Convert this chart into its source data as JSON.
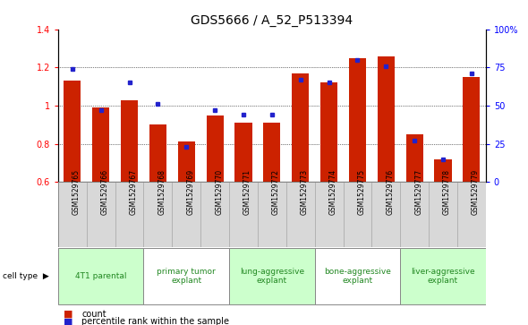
{
  "title": "GDS5666 / A_52_P513394",
  "samples": [
    "GSM1529765",
    "GSM1529766",
    "GSM1529767",
    "GSM1529768",
    "GSM1529769",
    "GSM1529770",
    "GSM1529771",
    "GSM1529772",
    "GSM1529773",
    "GSM1529774",
    "GSM1529775",
    "GSM1529776",
    "GSM1529777",
    "GSM1529778",
    "GSM1529779"
  ],
  "count_values": [
    1.13,
    0.99,
    1.03,
    0.9,
    0.81,
    0.95,
    0.91,
    0.91,
    1.17,
    1.12,
    1.25,
    1.26,
    0.85,
    0.72,
    1.15
  ],
  "percentile_values": [
    74,
    47,
    65,
    51,
    23,
    47,
    44,
    44,
    67,
    65,
    80,
    76,
    27,
    15,
    71
  ],
  "cell_types": [
    {
      "label": "4T1 parental",
      "start": 0,
      "end": 2,
      "color": "#ccffcc"
    },
    {
      "label": "primary tumor\nexplant",
      "start": 3,
      "end": 5,
      "color": "#ffffff"
    },
    {
      "label": "lung-aggressive\nexplant",
      "start": 6,
      "end": 8,
      "color": "#ccffcc"
    },
    {
      "label": "bone-aggressive\nexplant",
      "start": 9,
      "end": 11,
      "color": "#ffffff"
    },
    {
      "label": "liver-aggressive\nexplant",
      "start": 12,
      "end": 14,
      "color": "#ccffcc"
    }
  ],
  "ylim_left": [
    0.6,
    1.4
  ],
  "ylim_right": [
    0,
    100
  ],
  "bar_color": "#cc2200",
  "dot_color": "#2222cc",
  "title_fontsize": 10,
  "tick_fontsize": 7,
  "sample_fontsize": 5.5,
  "celltype_fontsize": 6.5,
  "legend_fontsize": 7
}
